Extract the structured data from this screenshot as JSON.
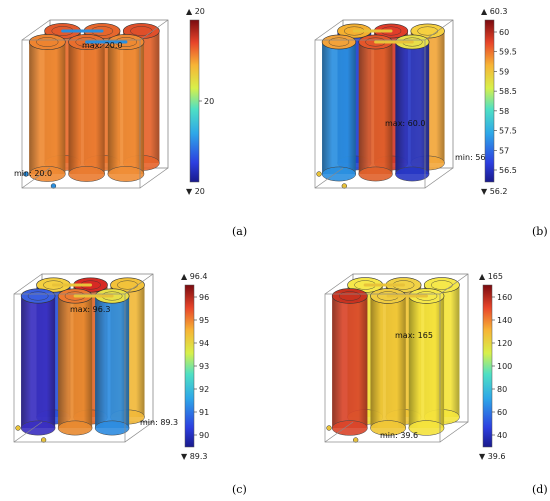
{
  "panels": [
    {
      "tag": "(a)",
      "annotations": {
        "max": "max: 20.0",
        "min": "min: 20.0"
      },
      "colorbar": {
        "top": "▲ 20",
        "bottom": "▼ 20",
        "ticks": [
          "20"
        ]
      },
      "cell_colors": [
        "#e86a2c",
        "#e9742e",
        "#e5632a",
        "#ee8a33",
        "#ea7b30",
        "#f08d35"
      ],
      "cap_colors": [
        "#e35a2c",
        "#e7662c",
        "#df4f2a",
        "#ee8430",
        "#e96e2d",
        "#ef8a33"
      ]
    },
    {
      "tag": "(b)",
      "annotations": {
        "max": "max: 60.0",
        "min": "min: 56.2"
      },
      "colorbar": {
        "top": "▲ 60.3",
        "bottom": "▼ 56.2",
        "ticks": [
          "60",
          "59.5",
          "59",
          "58.5",
          "58",
          "57.5",
          "57",
          "56.5"
        ]
      },
      "cell_colors": [
        "#1f3fd0",
        "#d43a2a",
        "#f2a63a",
        "#2a8fe0",
        "#e0602a",
        "#2736c4"
      ],
      "cap_colors": [
        "#f4b030",
        "#e03c2a",
        "#f6d040",
        "#f2a23a",
        "#e4562a",
        "#e8e04a"
      ]
    },
    {
      "tag": "(c)",
      "annotations": {
        "max": "max: 96.3",
        "min": "min: 89.3"
      },
      "colorbar": {
        "top": "▲ 96.4",
        "bottom": "▼ 89.3",
        "ticks": [
          "96",
          "95",
          "94",
          "93",
          "92",
          "91",
          "90"
        ]
      },
      "cell_colors": [
        "#2a52d8",
        "#e0672a",
        "#f1b83a",
        "#3a2fc0",
        "#e88a30",
        "#2e8ce0"
      ],
      "cap_colors": [
        "#f4d040",
        "#d72a24",
        "#f2c23a",
        "#3a5fe0",
        "#ec7a30",
        "#e8e048"
      ]
    },
    {
      "tag": "(d)",
      "annotations": {
        "max": "max: 165",
        "min": "min: 39.6"
      },
      "colorbar": {
        "top": "▲ 165",
        "bottom": "▼ 39.6",
        "ticks": [
          "160",
          "140",
          "120",
          "100",
          "80",
          "60",
          "40"
        ]
      },
      "cell_colors": [
        "#f2df3a",
        "#f0c436",
        "#f4e43c",
        "#d9452a",
        "#f0c736",
        "#f4e23c"
      ],
      "cap_colors": [
        "#f6e84a",
        "#f1d246",
        "#f6e84a",
        "#c8321f",
        "#f0cc42",
        "#f6e84a"
      ]
    }
  ]
}
